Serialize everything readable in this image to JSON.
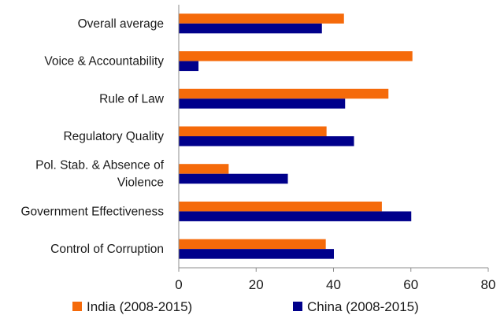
{
  "chart_data": {
    "type": "bar",
    "orientation": "horizontal",
    "title": "",
    "xlabel": "",
    "ylabel": "",
    "xlim": [
      0,
      80
    ],
    "x_ticks": [
      "0",
      "20",
      "40",
      "60",
      "80"
    ],
    "x_tick_values": [
      0,
      20,
      40,
      60,
      80
    ],
    "grid": false,
    "legend_position": "bottom",
    "categories": [
      "Overall average",
      "Voice & Accountability",
      "Rule of Law",
      "Regulatory Quality",
      "Pol. Stab. & Absence of Violence",
      "Government Effectiveness",
      "Control of Corruption"
    ],
    "category_lines": [
      [
        "Overall average"
      ],
      [
        "Voice & Accountability"
      ],
      [
        "Rule of Law"
      ],
      [
        "Regulatory Quality"
      ],
      [
        "Pol. Stab. & Absence of",
        "Violence"
      ],
      [
        "Government Effectiveness"
      ],
      [
        "Control of Corruption"
      ]
    ],
    "series": [
      {
        "name": "India (2008-2015)",
        "color": "#f56a0a",
        "values": [
          42.7,
          60.4,
          54.2,
          38.2,
          12.9,
          52.5,
          38.0
        ]
      },
      {
        "name": "China (2008-2015)",
        "color": "#00008b",
        "values": [
          37.0,
          5.1,
          43.0,
          45.3,
          28.2,
          60.1,
          40.1
        ]
      }
    ]
  }
}
